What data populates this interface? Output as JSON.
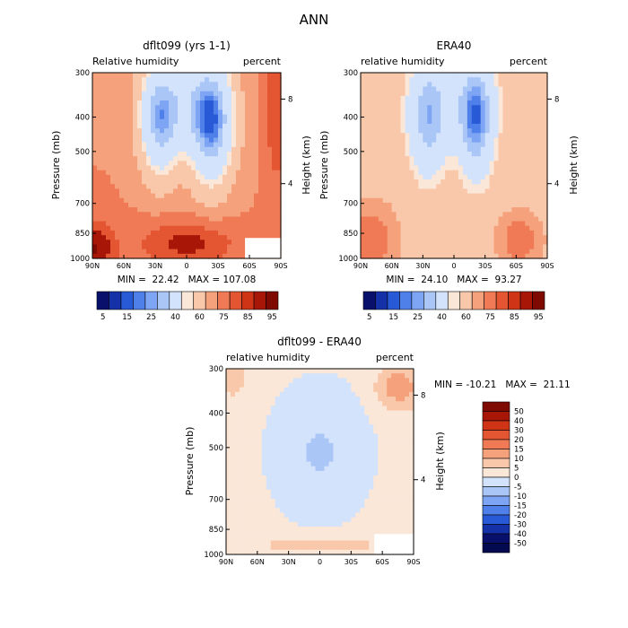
{
  "figure_title": "ANN",
  "chart_data": [
    {
      "type": "heatmap",
      "title": "dflt099 (yrs 1-1)",
      "left_label": "Relative humidity",
      "right_label": "percent",
      "ylabel": "Pressure (mb)",
      "y2label": "Height (km)",
      "x_ticks": [
        "90N",
        "60N",
        "30N",
        "0",
        "30S",
        "60S",
        "90S"
      ],
      "x_values": [
        90,
        60,
        30,
        0,
        -30,
        -60,
        -90
      ],
      "y_ticks": [
        "300",
        "400",
        "500",
        "700",
        "850",
        "1000"
      ],
      "y_tick_values": [
        300,
        400,
        500,
        700,
        850,
        1000
      ],
      "y2_ticks": [
        "8",
        "4"
      ],
      "y2_tick_pressures": [
        356,
        616
      ],
      "ylim": [
        300,
        1000
      ],
      "stats": "MIN =  22.42   MAX = 107.08",
      "min": 22.42,
      "max": 107.08,
      "colorbar": {
        "orientation": "horizontal",
        "labels": [
          "5",
          "15",
          "25",
          "40",
          "60",
          "75",
          "85",
          "95"
        ],
        "colors": [
          "#08106b",
          "#1431a8",
          "#2859d6",
          "#4f80ea",
          "#7ea4f4",
          "#a9c6f7",
          "#d3e3fb",
          "#fbe7d8",
          "#f9c8aa",
          "#f5a27c",
          "#ef7a55",
          "#e45532",
          "#cf3417",
          "#a81608",
          "#7e0a02"
        ]
      }
    },
    {
      "type": "heatmap",
      "title": "ERA40",
      "left_label": "relative humidity",
      "right_label": "percent",
      "ylabel": "Pressure (mb)",
      "y2label": "Height (km)",
      "x_ticks": [
        "90N",
        "60N",
        "30N",
        "0",
        "30S",
        "60S",
        "90S"
      ],
      "x_values": [
        90,
        60,
        30,
        0,
        -30,
        -60,
        -90
      ],
      "y_ticks": [
        "300",
        "400",
        "500",
        "700",
        "850",
        "1000"
      ],
      "y_tick_values": [
        300,
        400,
        500,
        700,
        850,
        1000
      ],
      "y2_ticks": [
        "8",
        "4"
      ],
      "y2_tick_pressures": [
        356,
        616
      ],
      "ylim": [
        300,
        1000
      ],
      "stats": "MIN =  24.10   MAX =  93.27",
      "min": 24.1,
      "max": 93.27,
      "colorbar": {
        "orientation": "horizontal",
        "labels": [
          "5",
          "15",
          "25",
          "40",
          "60",
          "75",
          "85",
          "95"
        ],
        "colors": [
          "#08106b",
          "#1431a8",
          "#2859d6",
          "#4f80ea",
          "#7ea4f4",
          "#a9c6f7",
          "#d3e3fb",
          "#fbe7d8",
          "#f9c8aa",
          "#f5a27c",
          "#ef7a55",
          "#e45532",
          "#cf3417",
          "#a81608",
          "#7e0a02"
        ]
      }
    },
    {
      "type": "heatmap",
      "title": "dflt099 - ERA40",
      "left_label": "relative humidity",
      "right_label": "percent",
      "ylabel": "Pressure (mb)",
      "y2label": "Height (km)",
      "x_ticks": [
        "90N",
        "60N",
        "30N",
        "0",
        "30S",
        "60S",
        "90S"
      ],
      "x_values": [
        90,
        60,
        30,
        0,
        -30,
        -60,
        -90
      ],
      "y_ticks": [
        "300",
        "400",
        "500",
        "700",
        "850",
        "1000"
      ],
      "y_tick_values": [
        300,
        400,
        500,
        700,
        850,
        1000
      ],
      "y2_ticks": [
        "8",
        "4"
      ],
      "y2_tick_pressures": [
        356,
        616
      ],
      "ylim": [
        300,
        1000
      ],
      "stats": "MIN = -10.21   MAX =  21.11",
      "min": -10.21,
      "max": 21.11,
      "colorbar": {
        "orientation": "vertical",
        "labels": [
          "50",
          "40",
          "30",
          "20",
          "15",
          "10",
          "5",
          "0",
          "-5",
          "-10",
          "-15",
          "-20",
          "-30",
          "-40",
          "-50"
        ],
        "colors": [
          "#7e0a02",
          "#a81608",
          "#cf3417",
          "#e45532",
          "#ef7a55",
          "#f5a27c",
          "#f9c8aa",
          "#fbe7d8",
          "#d3e3fb",
          "#a9c6f7",
          "#7ea4f4",
          "#4f80ea",
          "#2859d6",
          "#1431a8",
          "#08106b",
          "#040a50"
        ]
      }
    }
  ]
}
